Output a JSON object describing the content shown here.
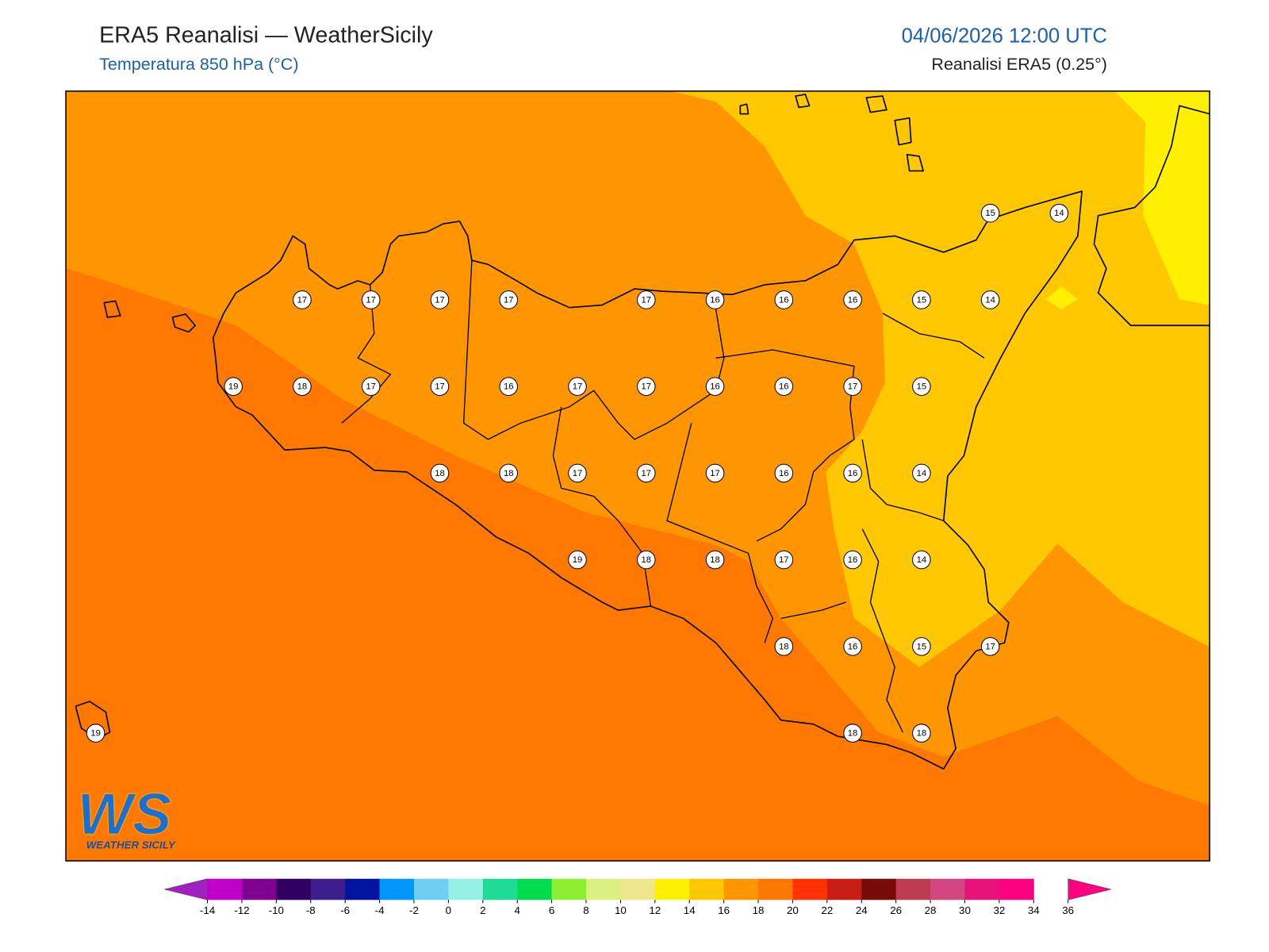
{
  "header": {
    "title": "ERA5 Reanalisi — WeatherSicily",
    "subtitle": "Temperatura 850 hPa (°C)",
    "date": "04/06/2026 12:00 UTC",
    "source": "Reanalisi ERA5 (0.25°)"
  },
  "map": {
    "station_grid": [
      [
        null,
        null,
        null,
        null,
        null,
        null,
        null,
        null,
        null,
        null,
        null,
        null,
        null,
        15,
        14
      ],
      [
        null,
        null,
        null,
        17,
        17,
        17,
        17,
        null,
        17,
        16,
        16,
        16,
        15,
        14,
        null
      ],
      [
        null,
        null,
        19,
        18,
        17,
        17,
        16,
        17,
        17,
        16,
        16,
        17,
        15,
        null,
        null
      ],
      [
        null,
        null,
        null,
        null,
        null,
        18,
        18,
        17,
        17,
        17,
        16,
        16,
        14,
        null,
        null
      ],
      [
        null,
        null,
        null,
        null,
        null,
        null,
        null,
        19,
        18,
        18,
        17,
        16,
        14,
        null,
        null
      ],
      [
        null,
        null,
        null,
        null,
        null,
        null,
        null,
        null,
        null,
        null,
        18,
        16,
        15,
        17,
        null
      ],
      [
        19,
        null,
        null,
        null,
        null,
        null,
        null,
        null,
        null,
        null,
        null,
        18,
        18,
        null,
        null
      ]
    ]
  },
  "logo": {
    "mark": "WS",
    "name": "WEATHER SICILY"
  },
  "colorbar": {
    "ticks": [
      -14,
      -12,
      -10,
      -8,
      -6,
      -4,
      -2,
      0,
      2,
      4,
      6,
      8,
      10,
      12,
      14,
      16,
      18,
      20,
      22,
      24,
      26,
      28,
      30,
      32,
      34,
      36
    ],
    "colors": [
      "#c000c8",
      "#800090",
      "#300060",
      "#3c1e8c",
      "#0014a0",
      "#0096ff",
      "#6ecff5",
      "#96f0e6",
      "#1edc96",
      "#00dc50",
      "#8cf032",
      "#dcf082",
      "#f0e68c",
      "#fff000",
      "#ffc800",
      "#ff9600",
      "#ff7800",
      "#ff3200",
      "#c81e14",
      "#780a0a",
      "#be3c50",
      "#d24682",
      "#e6147a",
      "#ff0080"
    ],
    "under_color": "#a020c0",
    "over_color": "#ff0080"
  }
}
